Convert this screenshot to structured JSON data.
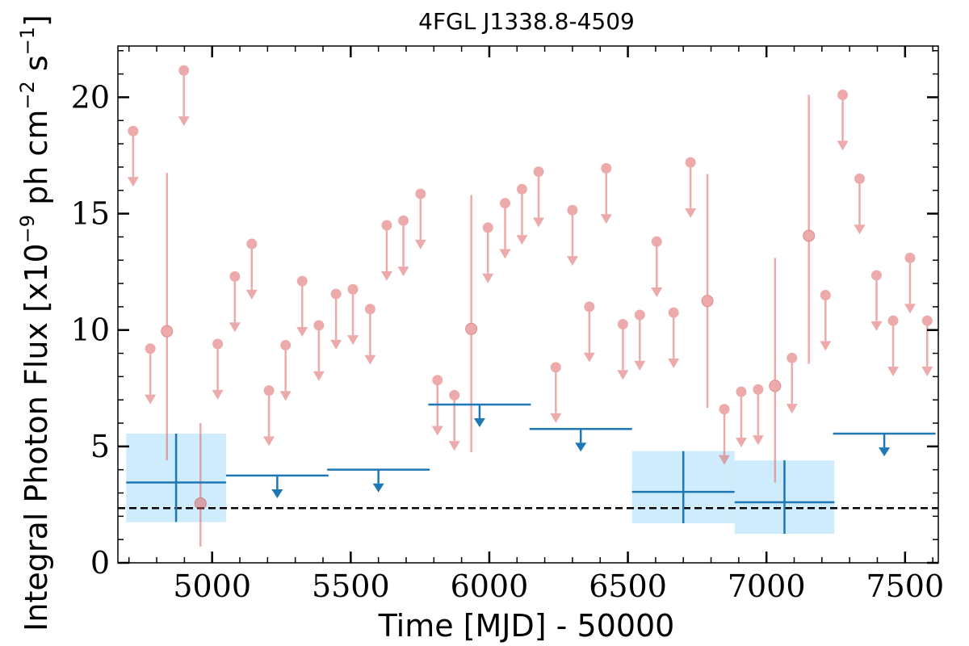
{
  "chart_data": {
    "type": "scatter",
    "title": "4FGL J1338.8-4509",
    "xlabel": "Time [MJD] - 50000",
    "ylabel": "Integral Photon Flux [x10^-9 ph cm^-2 s^-1]",
    "ylabel_parts": {
      "prefix": "Integral Photon Flux [x10",
      "exp1": "−9",
      "mid": " ph cm",
      "exp2": "−2",
      "mid2": " s",
      "exp3": "−1",
      "suffix": "]"
    },
    "xlim": [
      4660,
      7620
    ],
    "ylim": [
      0,
      22.2
    ],
    "x_ticks": [
      5000,
      5500,
      6000,
      6500,
      7000,
      7500
    ],
    "y_ticks": [
      0,
      5,
      10,
      15,
      20
    ],
    "x_tick_labels": [
      "5000",
      "5500",
      "6000",
      "6500",
      "7000",
      "7500"
    ],
    "y_tick_labels": [
      "0",
      "5",
      "10",
      "15",
      "20"
    ],
    "grid": false,
    "legend": "none",
    "reference_line": {
      "y": 2.35,
      "style": "dashed",
      "color": "#000000"
    },
    "colors": {
      "short_bin": "#e06666",
      "long_bin": "#1f77b4",
      "long_bin_band": "#bde6fb"
    },
    "series": [
      {
        "bin": "short",
        "upper_limits": [
          {
            "x": 4715,
            "y": 18.55
          },
          {
            "x": 4777,
            "y": 9.2
          },
          {
            "x": 4898,
            "y": 21.15
          },
          {
            "x": 5020,
            "y": 9.4
          },
          {
            "x": 5082,
            "y": 12.3
          },
          {
            "x": 5143,
            "y": 13.7
          },
          {
            "x": 5205,
            "y": 7.4
          },
          {
            "x": 5265,
            "y": 9.35
          },
          {
            "x": 5325,
            "y": 12.1
          },
          {
            "x": 5385,
            "y": 10.2
          },
          {
            "x": 5447,
            "y": 11.55
          },
          {
            "x": 5508,
            "y": 11.75
          },
          {
            "x": 5570,
            "y": 10.9
          },
          {
            "x": 5630,
            "y": 14.5
          },
          {
            "x": 5690,
            "y": 14.7
          },
          {
            "x": 5752,
            "y": 15.85
          },
          {
            "x": 5813,
            "y": 7.85
          },
          {
            "x": 5874,
            "y": 7.2
          },
          {
            "x": 5995,
            "y": 14.4
          },
          {
            "x": 6057,
            "y": 15.45
          },
          {
            "x": 6118,
            "y": 16.05
          },
          {
            "x": 6178,
            "y": 16.8
          },
          {
            "x": 6240,
            "y": 8.4
          },
          {
            "x": 6300,
            "y": 15.15
          },
          {
            "x": 6361,
            "y": 11.0
          },
          {
            "x": 6422,
            "y": 16.95
          },
          {
            "x": 6482,
            "y": 10.25
          },
          {
            "x": 6543,
            "y": 10.65
          },
          {
            "x": 6604,
            "y": 13.8
          },
          {
            "x": 6665,
            "y": 10.75
          },
          {
            "x": 6726,
            "y": 17.2
          },
          {
            "x": 6848,
            "y": 6.6
          },
          {
            "x": 6909,
            "y": 7.35
          },
          {
            "x": 6970,
            "y": 7.45
          },
          {
            "x": 7092,
            "y": 8.8
          },
          {
            "x": 7213,
            "y": 11.5
          },
          {
            "x": 7275,
            "y": 20.1
          },
          {
            "x": 7336,
            "y": 16.5
          },
          {
            "x": 7397,
            "y": 12.35
          },
          {
            "x": 7457,
            "y": 10.4
          },
          {
            "x": 7518,
            "y": 13.1
          },
          {
            "x": 7580,
            "y": 10.4
          }
        ],
        "detections": [
          {
            "x": 4837,
            "y": 9.95,
            "y_low": 4.4,
            "y_high": 16.75
          },
          {
            "x": 4958,
            "y": 2.55,
            "y_low": 0.7,
            "y_high": 6.0
          },
          {
            "x": 5935,
            "y": 10.05,
            "y_low": 4.75,
            "y_high": 15.8
          },
          {
            "x": 6787,
            "y": 11.25,
            "y_low": 6.65,
            "y_high": 16.7
          },
          {
            "x": 7031,
            "y": 7.6,
            "y_low": 3.45,
            "y_high": 13.1
          },
          {
            "x": 7153,
            "y": 14.05,
            "y_low": 8.55,
            "y_high": 20.1
          }
        ]
      },
      {
        "bin": "long",
        "upper_limits": [
          {
            "x": 5235,
            "y": 3.75,
            "x_low": 5050,
            "x_high": 5420
          },
          {
            "x": 5600,
            "y": 4.0,
            "x_low": 5415,
            "x_high": 5785
          },
          {
            "x": 5965,
            "y": 6.8,
            "x_low": 5780,
            "x_high": 6150
          },
          {
            "x": 6330,
            "y": 5.75,
            "x_low": 6145,
            "x_high": 6515
          },
          {
            "x": 7425,
            "y": 5.55,
            "x_low": 7240,
            "x_high": 7610
          }
        ],
        "detections": [
          {
            "x": 4870,
            "y": 3.45,
            "x_low": 4690,
            "x_high": 5050,
            "y_low": 1.75,
            "y_high": 5.55
          },
          {
            "x": 6700,
            "y": 3.05,
            "x_low": 6515,
            "x_high": 6885,
            "y_low": 1.7,
            "y_high": 4.8
          },
          {
            "x": 7065,
            "y": 2.6,
            "x_low": 6885,
            "x_high": 7245,
            "y_low": 1.25,
            "y_high": 4.4
          }
        ]
      }
    ]
  }
}
